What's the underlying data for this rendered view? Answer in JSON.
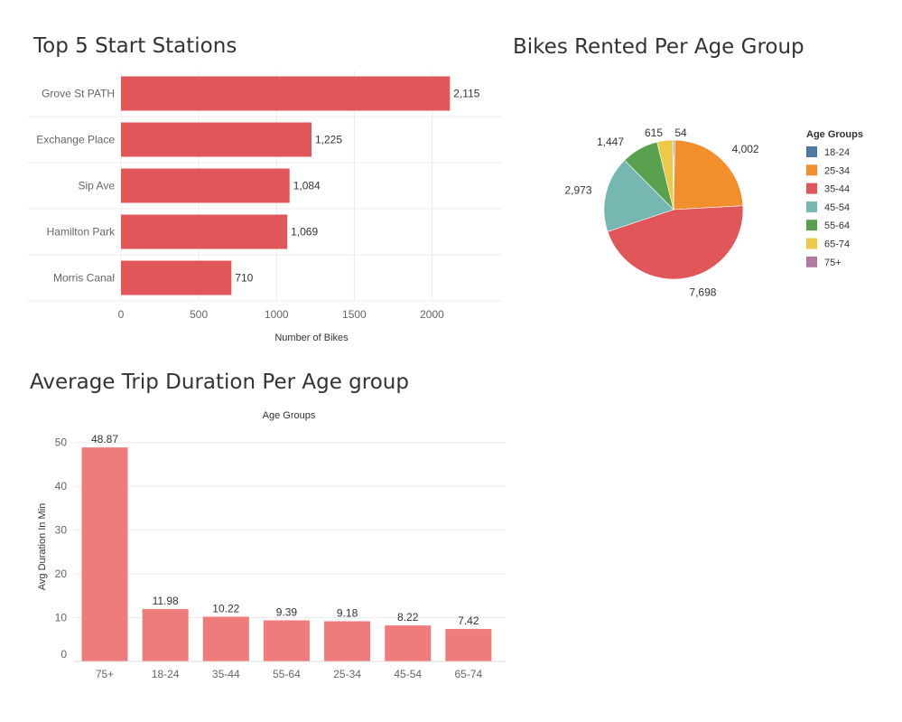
{
  "colors": {
    "bar_stations": "#e15759",
    "bar_duration": "#f07b7b",
    "grid": "#ececec",
    "axis_text": "#666666",
    "label_text": "#333333"
  },
  "chart_data": [
    {
      "id": "stations",
      "type": "bar",
      "orientation": "horizontal",
      "title": "Top 5 Start Stations",
      "xlabel": "Number of Bikes",
      "ylabel": "",
      "categories": [
        "Grove St PATH",
        "Exchange Place",
        "Sip Ave",
        "Hamilton Park",
        "Morris Canal"
      ],
      "values": [
        2115,
        1225,
        1084,
        1069,
        710
      ],
      "value_labels": [
        "2,115",
        "1,225",
        "1,084",
        "1,069",
        "710"
      ],
      "xlim": [
        0,
        2450
      ],
      "xticks": [
        0,
        500,
        1000,
        1500,
        2000
      ],
      "grid": true
    },
    {
      "id": "age_pie",
      "type": "pie",
      "title": "Bikes Rented Per Age Group",
      "legend_title": "Age Groups",
      "legend_position": "right",
      "slices": [
        {
          "label": "18-24",
          "value": 54,
          "value_label": "54",
          "color": "#4e79a7"
        },
        {
          "label": "25-34",
          "value": 4002,
          "value_label": "4,002",
          "color": "#f28e2b"
        },
        {
          "label": "35-44",
          "value": 7698,
          "value_label": "7,698",
          "color": "#e15759"
        },
        {
          "label": "45-54",
          "value": 2973,
          "value_label": "2,973",
          "color": "#76b7b2"
        },
        {
          "label": "55-64",
          "value": 1447,
          "value_label": "1,447",
          "color": "#59a14f"
        },
        {
          "label": "65-74",
          "value": 615,
          "value_label": "615",
          "color": "#edc948"
        },
        {
          "label": "75+",
          "value": 30,
          "value_label": "",
          "color": "#b07aa1"
        }
      ]
    },
    {
      "id": "duration",
      "type": "bar",
      "orientation": "vertical",
      "title": "Average Trip Duration Per Age group",
      "xlabel": "Age Groups",
      "ylabel": "Avg Duration In Min",
      "categories": [
        "75+",
        "18-24",
        "35-44",
        "55-64",
        "25-34",
        "45-54",
        "65-74"
      ],
      "values": [
        48.87,
        11.98,
        10.22,
        9.39,
        9.18,
        8.22,
        7.42
      ],
      "value_labels": [
        "48.87",
        "11.98",
        "10.22",
        "9.39",
        "9.18",
        "8.22",
        "7.42"
      ],
      "ylim": [
        0,
        52
      ],
      "yticks": [
        0,
        10,
        20,
        30,
        40,
        50
      ],
      "grid": true
    }
  ]
}
